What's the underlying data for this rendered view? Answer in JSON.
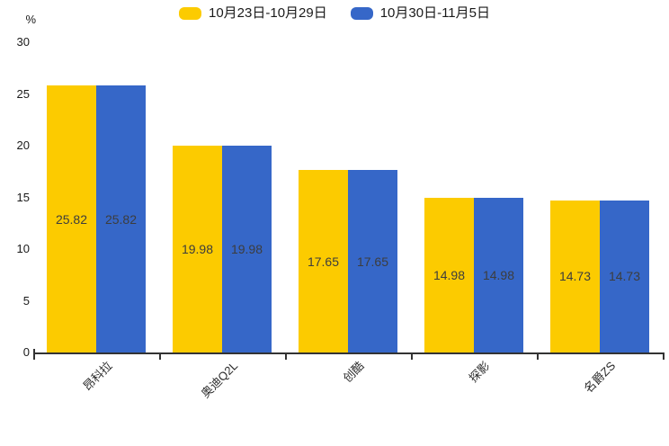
{
  "chart_data": {
    "type": "bar",
    "title": "",
    "categories": [
      "昂科拉",
      "奥迪Q2L",
      "创酷",
      "探影",
      "名爵ZS"
    ],
    "series": [
      {
        "name": "10月23日-10月29日",
        "color": "#FCCB00",
        "values": [
          25.82,
          19.98,
          17.65,
          14.98,
          14.73
        ]
      },
      {
        "name": "10月30日-11月5日",
        "color": "#3667C8",
        "values": [
          25.82,
          19.98,
          17.65,
          14.98,
          14.73
        ]
      }
    ],
    "ylabel": "%",
    "ylim": [
      0,
      30
    ],
    "yticks": [
      0,
      5,
      10,
      15,
      20,
      25,
      30
    ],
    "legend_position": "top",
    "grid": false,
    "value_labels_visible": true,
    "axis_color": "#333333",
    "value_label_color": "#3d3d3d"
  }
}
